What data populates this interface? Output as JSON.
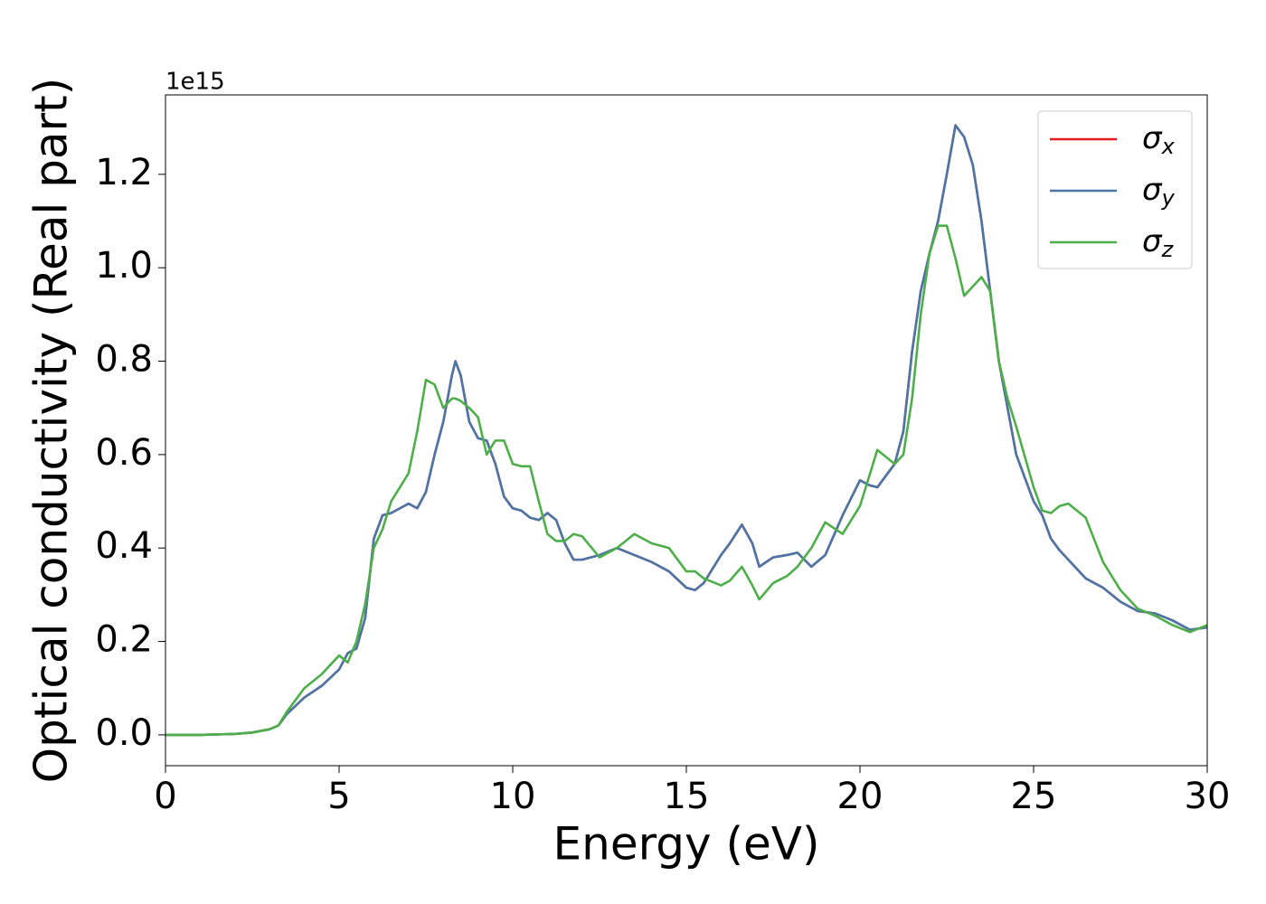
{
  "chart_data": {
    "type": "line",
    "xlabel": "Energy (eV)",
    "ylabel": "Optical conductivity (Real part)",
    "y_offset_label": "1e15",
    "x": [
      0,
      1,
      2,
      2.5,
      3,
      3.25,
      3.5,
      4,
      4.5,
      5,
      5.25,
      5.5,
      5.75,
      6,
      6.25,
      6.5,
      7,
      7.25,
      7.5,
      7.75,
      8,
      8.25,
      8.35,
      8.5,
      8.75,
      9,
      9.25,
      9.5,
      9.75,
      10,
      10.25,
      10.5,
      10.75,
      11,
      11.25,
      11.5,
      11.75,
      12,
      12.5,
      13,
      13.5,
      14,
      14.5,
      15,
      15.25,
      15.5,
      16,
      16.25,
      16.6,
      16.9,
      17.1,
      17.5,
      17.9,
      18.2,
      18.6,
      19,
      19.5,
      20,
      20.25,
      20.5,
      21,
      21.25,
      21.5,
      21.75,
      22,
      22.25,
      22.5,
      22.75,
      23,
      23.25,
      23.5,
      23.75,
      24,
      24.25,
      24.5,
      25,
      25.25,
      25.5,
      25.75,
      26,
      26.5,
      27,
      27.5,
      28,
      28.5,
      29,
      29.5,
      30
    ],
    "series": [
      {
        "name": "σx",
        "color": "#e41a1c",
        "values": [
          0,
          0,
          0.002,
          0.005,
          0.012,
          0.02,
          0.045,
          0.08,
          0.105,
          0.14,
          0.175,
          0.185,
          0.25,
          0.42,
          0.47,
          0.475,
          0.495,
          0.485,
          0.52,
          0.6,
          0.67,
          0.77,
          0.8,
          0.77,
          0.67,
          0.635,
          0.63,
          0.58,
          0.51,
          0.485,
          0.48,
          0.465,
          0.46,
          0.475,
          0.46,
          0.41,
          0.375,
          0.375,
          0.385,
          0.4,
          0.385,
          0.37,
          0.35,
          0.315,
          0.31,
          0.325,
          0.385,
          0.41,
          0.45,
          0.41,
          0.36,
          0.38,
          0.385,
          0.39,
          0.36,
          0.385,
          0.47,
          0.545,
          0.535,
          0.53,
          0.58,
          0.65,
          0.82,
          0.95,
          1.03,
          1.1,
          1.2,
          1.305,
          1.28,
          1.22,
          1.1,
          0.95,
          0.8,
          0.7,
          0.6,
          0.5,
          0.47,
          0.42,
          0.395,
          0.375,
          0.335,
          0.315,
          0.285,
          0.265,
          0.26,
          0.245,
          0.225,
          0.23
        ]
      },
      {
        "name": "σy",
        "color": "#4a76a8",
        "values": [
          0,
          0,
          0.002,
          0.005,
          0.012,
          0.02,
          0.045,
          0.08,
          0.105,
          0.14,
          0.175,
          0.185,
          0.25,
          0.42,
          0.47,
          0.475,
          0.495,
          0.485,
          0.52,
          0.6,
          0.67,
          0.77,
          0.8,
          0.77,
          0.67,
          0.635,
          0.63,
          0.58,
          0.51,
          0.485,
          0.48,
          0.465,
          0.46,
          0.475,
          0.46,
          0.41,
          0.375,
          0.375,
          0.385,
          0.4,
          0.385,
          0.37,
          0.35,
          0.315,
          0.31,
          0.325,
          0.385,
          0.41,
          0.45,
          0.41,
          0.36,
          0.38,
          0.385,
          0.39,
          0.36,
          0.385,
          0.47,
          0.545,
          0.535,
          0.53,
          0.58,
          0.65,
          0.82,
          0.95,
          1.03,
          1.1,
          1.2,
          1.305,
          1.28,
          1.22,
          1.1,
          0.95,
          0.8,
          0.7,
          0.6,
          0.5,
          0.47,
          0.42,
          0.395,
          0.375,
          0.335,
          0.315,
          0.285,
          0.265,
          0.26,
          0.245,
          0.225,
          0.23
        ]
      },
      {
        "name": "σz",
        "color": "#4daf4a",
        "values": [
          0,
          0,
          0.002,
          0.005,
          0.012,
          0.02,
          0.05,
          0.1,
          0.13,
          0.17,
          0.155,
          0.2,
          0.28,
          0.4,
          0.44,
          0.5,
          0.56,
          0.65,
          0.76,
          0.75,
          0.7,
          0.72,
          0.72,
          0.715,
          0.7,
          0.68,
          0.6,
          0.63,
          0.63,
          0.58,
          0.575,
          0.575,
          0.5,
          0.43,
          0.415,
          0.415,
          0.43,
          0.425,
          0.38,
          0.4,
          0.43,
          0.41,
          0.4,
          0.35,
          0.35,
          0.335,
          0.32,
          0.33,
          0.36,
          0.32,
          0.29,
          0.325,
          0.34,
          0.36,
          0.4,
          0.455,
          0.43,
          0.49,
          0.55,
          0.61,
          0.58,
          0.6,
          0.72,
          0.9,
          1.03,
          1.09,
          1.09,
          1.02,
          0.94,
          0.96,
          0.98,
          0.95,
          0.8,
          0.72,
          0.66,
          0.53,
          0.48,
          0.475,
          0.49,
          0.495,
          0.465,
          0.37,
          0.31,
          0.27,
          0.255,
          0.235,
          0.22,
          0.235
        ]
      }
    ],
    "xlim": [
      0,
      30
    ],
    "xticks": [
      0,
      5,
      10,
      15,
      20,
      25,
      30
    ],
    "ylim": [
      -0.066,
      1.37
    ],
    "yticks": [
      {
        "value": 0,
        "label": "0.0"
      },
      0.2,
      0.4,
      0.6,
      0.8,
      {
        "value": 1,
        "label": "1.0"
      },
      1.2
    ],
    "legend": "upper right",
    "grid": false
  }
}
